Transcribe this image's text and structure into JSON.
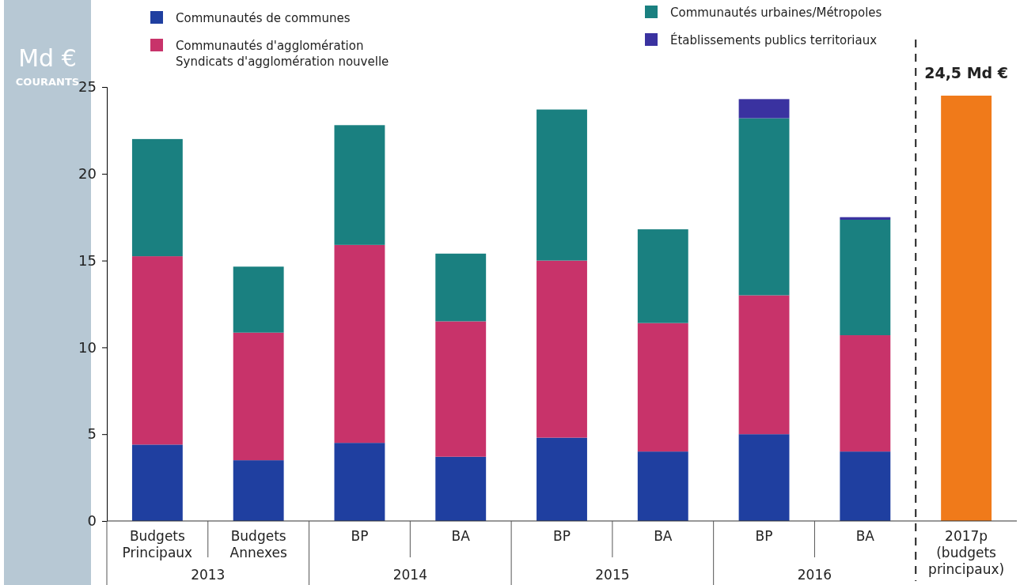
{
  "chart_data": {
    "type": "bar",
    "stacked": true,
    "ylabel": "Md €\nCOURANTS",
    "categories": [
      "Budgets\nPrincipaux",
      "Budgets\nAnnexes",
      "BP",
      "BA",
      "BP",
      "BA",
      "BP",
      "BA",
      "2017p\n(budgets\nprincipaux)"
    ],
    "series": [
      {
        "name": "Communautés de communes",
        "color": "#1f3fa0",
        "values": [
          4.4,
          3.5,
          4.5,
          3.7,
          4.8,
          4.0,
          5.0,
          4.0,
          null
        ]
      },
      {
        "name": "Communautés d'agglomération\nSyndicats d'agglomération nouvelle",
        "color": "#c8336a",
        "values": [
          10.85,
          7.35,
          11.4,
          7.8,
          10.2,
          7.4,
          8.0,
          6.7,
          null
        ]
      },
      {
        "name": "Communautés urbaines/Métropoles",
        "color": "#1a8080",
        "values": [
          6.75,
          3.8,
          6.9,
          3.9,
          8.7,
          5.4,
          10.2,
          6.65,
          null
        ]
      },
      {
        "name": "Établissements publics territoriaux",
        "color": "#3a32a0",
        "values": [
          null,
          null,
          null,
          null,
          null,
          null,
          1.1,
          0.15,
          null
        ]
      },
      {
        "color": "#f07a1a",
        "values": [
          null,
          null,
          null,
          null,
          null,
          null,
          null,
          null,
          24.5
        ],
        "value_labels": [
          null,
          null,
          null,
          null,
          null,
          null,
          null,
          null,
          "24,5 Md €"
        ]
      }
    ],
    "annotations": [
      "2013",
      "2014",
      "2015",
      "2016"
    ],
    "ylim": [
      0,
      25
    ],
    "yticks": [
      0,
      5,
      10,
      15,
      20,
      25
    ],
    "grid": false,
    "legend": "top"
  }
}
